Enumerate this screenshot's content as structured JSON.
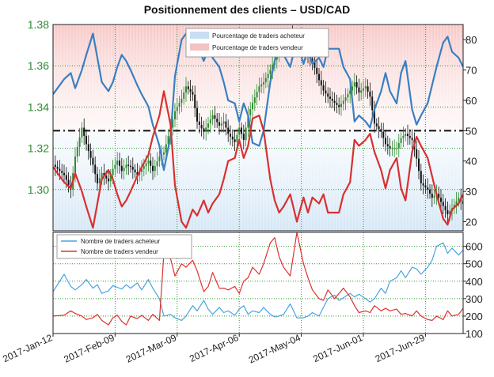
{
  "chart_data": [
    {
      "type": "line",
      "title": "Positionnement des clients – USD/CAD",
      "price_axis": {
        "ylim": [
          1.28,
          1.38
        ],
        "ticks": [
          "1.30",
          "1.32",
          "1.34",
          "1.36",
          "1.38"
        ],
        "color": "#2e8b2e"
      },
      "percent_axis": {
        "ylim": [
          17,
          85
        ],
        "ticks": [
          "20",
          "30",
          "40",
          "50",
          "60",
          "70",
          "80"
        ]
      },
      "reference_line": 50,
      "legend": {
        "placement": "top-center",
        "entries": [
          "Pourcentage de traders acheteur",
          "Pourcentage de traders vendeur"
        ]
      },
      "x_categories": [
        "2017-Jan-12",
        "2017-Feb-09",
        "2017-Mar-09",
        "2017-Apr-06",
        "2017-May-04",
        "2017-Jun-01",
        "2017-Jun-29"
      ],
      "x_range_days": [
        0,
        185
      ],
      "series": [
        {
          "name": "Pourcentage de traders acheteur",
          "color": "#3a7fc1",
          "x": [
            0,
            5,
            8,
            10,
            13,
            15,
            18,
            20,
            22,
            25,
            27,
            29,
            31,
            33,
            35,
            38,
            40,
            43,
            45,
            48,
            50,
            53,
            55,
            58,
            60,
            63,
            65,
            68,
            70,
            72,
            75,
            77,
            79,
            82,
            84,
            86,
            88,
            90,
            93,
            95,
            98,
            100,
            102,
            104,
            107,
            110,
            113,
            115,
            117,
            120,
            122,
            124,
            127,
            129,
            131,
            134,
            136,
            138,
            141,
            143,
            145,
            148,
            150,
            152,
            155,
            157,
            159,
            162,
            164,
            166,
            169,
            171,
            173,
            176,
            178,
            180,
            183,
            185
          ],
          "values": [
            62,
            67,
            69,
            64,
            70,
            75,
            82,
            74,
            66,
            63,
            66,
            71,
            75,
            73,
            70,
            65,
            62,
            58,
            52,
            45,
            37,
            48,
            68,
            80,
            82,
            76,
            78,
            73,
            77,
            74,
            71,
            66,
            60,
            59,
            53,
            59,
            55,
            46,
            45,
            50,
            66,
            73,
            77,
            75,
            71,
            80,
            72,
            77,
            72,
            74,
            71,
            77,
            77,
            77,
            71,
            67,
            53,
            55,
            53,
            51,
            57,
            63,
            69,
            63,
            59,
            69,
            73,
            57,
            52,
            55,
            59,
            65,
            71,
            79,
            81,
            76,
            74,
            71
          ]
        },
        {
          "name": "Pourcentage de traders vendeur",
          "color": "#d93030",
          "x": [
            0,
            5,
            8,
            10,
            13,
            15,
            18,
            20,
            22,
            25,
            27,
            29,
            31,
            33,
            35,
            38,
            40,
            43,
            45,
            48,
            50,
            53,
            55,
            58,
            60,
            63,
            65,
            68,
            70,
            72,
            75,
            77,
            79,
            82,
            84,
            86,
            88,
            90,
            93,
            95,
            98,
            100,
            102,
            104,
            107,
            110,
            113,
            115,
            117,
            120,
            122,
            124,
            127,
            129,
            131,
            134,
            136,
            138,
            141,
            143,
            145,
            148,
            150,
            152,
            155,
            157,
            159,
            162,
            164,
            166,
            169,
            171,
            173,
            176,
            178,
            180,
            183,
            185
          ],
          "values": [
            38,
            33,
            31,
            36,
            30,
            25,
            18,
            26,
            34,
            37,
            34,
            29,
            25,
            27,
            30,
            35,
            38,
            42,
            48,
            55,
            63,
            52,
            32,
            20,
            18,
            24,
            22,
            27,
            23,
            26,
            29,
            34,
            40,
            41,
            47,
            41,
            45,
            54,
            55,
            50,
            34,
            27,
            23,
            25,
            29,
            20,
            28,
            23,
            28,
            26,
            29,
            23,
            23,
            23,
            29,
            33,
            47,
            45,
            47,
            49,
            43,
            37,
            31,
            37,
            41,
            31,
            27,
            43,
            48,
            45,
            41,
            35,
            29,
            21,
            19,
            24,
            26,
            29
          ]
        },
        {
          "name": "USD/CAD",
          "color": "#111111",
          "x": [
            0,
            5,
            8,
            10,
            13,
            15,
            18,
            20,
            22,
            25,
            27,
            29,
            31,
            33,
            35,
            38,
            40,
            43,
            45,
            48,
            50,
            53,
            55,
            58,
            60,
            63,
            65,
            68,
            70,
            72,
            75,
            77,
            79,
            82,
            84,
            86,
            88,
            90,
            93,
            95,
            98,
            100,
            102,
            104,
            107,
            110,
            113,
            115,
            117,
            120,
            122,
            124,
            127,
            129,
            131,
            134,
            136,
            138,
            141,
            143,
            145,
            148,
            150,
            152,
            155,
            157,
            159,
            162,
            164,
            166,
            169,
            171,
            173,
            176,
            178,
            180,
            183,
            185
          ],
          "values": [
            1.312,
            1.307,
            1.3,
            1.316,
            1.33,
            1.322,
            1.312,
            1.303,
            1.308,
            1.304,
            1.31,
            1.314,
            1.309,
            1.312,
            1.311,
            1.307,
            1.31,
            1.314,
            1.309,
            1.316,
            1.318,
            1.33,
            1.338,
            1.344,
            1.35,
            1.346,
            1.333,
            1.328,
            1.332,
            1.336,
            1.331,
            1.333,
            1.327,
            1.323,
            1.33,
            1.324,
            1.336,
            1.342,
            1.35,
            1.352,
            1.358,
            1.363,
            1.368,
            1.372,
            1.375,
            1.373,
            1.369,
            1.365,
            1.362,
            1.353,
            1.348,
            1.345,
            1.342,
            1.34,
            1.343,
            1.348,
            1.352,
            1.347,
            1.35,
            1.345,
            1.332,
            1.328,
            1.322,
            1.32,
            1.32,
            1.325,
            1.327,
            1.324,
            1.315,
            1.303,
            1.3,
            1.296,
            1.298,
            1.292,
            1.288,
            1.291,
            1.296,
            1.293
          ]
        }
      ]
    },
    {
      "type": "line",
      "ylim": [
        100,
        680
      ],
      "ticks": [
        "100",
        "200",
        "300",
        "400",
        "500",
        "600"
      ],
      "legend": {
        "placement": "top-left",
        "entries": [
          "Nombre de traders acheteur",
          "Nombre de traders vendeur"
        ]
      },
      "series": [
        {
          "name": "Nombre de traders acheteur",
          "color": "#4aa3e0",
          "x": [
            0,
            5,
            8,
            10,
            13,
            15,
            18,
            20,
            22,
            25,
            27,
            29,
            31,
            33,
            35,
            38,
            40,
            43,
            45,
            48,
            50,
            53,
            55,
            58,
            60,
            63,
            65,
            68,
            70,
            72,
            75,
            77,
            79,
            82,
            84,
            86,
            88,
            90,
            93,
            95,
            98,
            100,
            102,
            104,
            107,
            110,
            113,
            115,
            117,
            120,
            122,
            124,
            127,
            129,
            131,
            134,
            136,
            138,
            141,
            143,
            145,
            148,
            150,
            152,
            155,
            157,
            159,
            162,
            164,
            166,
            169,
            171,
            173,
            176,
            178,
            180,
            183,
            185
          ],
          "values": [
            340,
            440,
            370,
            350,
            380,
            410,
            360,
            380,
            330,
            345,
            375,
            365,
            355,
            380,
            360,
            390,
            350,
            410,
            360,
            300,
            200,
            210,
            190,
            175,
            200,
            260,
            230,
            290,
            240,
            210,
            250,
            220,
            230,
            205,
            240,
            260,
            210,
            230,
            220,
            250,
            210,
            195,
            200,
            210,
            270,
            190,
            190,
            200,
            220,
            200,
            250,
            300,
            320,
            290,
            305,
            330,
            310,
            325,
            300,
            280,
            300,
            360,
            330,
            400,
            420,
            460,
            420,
            480,
            470,
            440,
            480,
            520,
            600,
            620,
            560,
            590,
            550,
            580
          ]
        },
        {
          "name": "Nombre de traders vendeur",
          "color": "#e03030",
          "x": [
            0,
            5,
            8,
            10,
            13,
            15,
            18,
            20,
            22,
            25,
            27,
            29,
            31,
            33,
            35,
            38,
            40,
            43,
            45,
            48,
            50,
            53,
            55,
            58,
            60,
            63,
            65,
            68,
            70,
            72,
            75,
            77,
            79,
            82,
            84,
            86,
            88,
            90,
            93,
            95,
            98,
            100,
            102,
            104,
            107,
            110,
            113,
            115,
            117,
            120,
            122,
            124,
            127,
            129,
            131,
            134,
            136,
            138,
            141,
            143,
            145,
            148,
            150,
            152,
            155,
            157,
            159,
            162,
            164,
            166,
            169,
            171,
            173,
            176,
            178,
            180,
            183,
            185
          ],
          "values": [
            200,
            205,
            230,
            215,
            200,
            180,
            190,
            210,
            175,
            150,
            190,
            205,
            170,
            150,
            200,
            185,
            205,
            175,
            210,
            175,
            560,
            530,
            430,
            500,
            480,
            520,
            460,
            340,
            370,
            450,
            360,
            360,
            350,
            370,
            330,
            400,
            420,
            480,
            440,
            500,
            620,
            650,
            540,
            480,
            430,
            680,
            500,
            420,
            350,
            300,
            290,
            350,
            300,
            330,
            360,
            310,
            260,
            220,
            230,
            220,
            260,
            230,
            245,
            230,
            240,
            210,
            215,
            200,
            230,
            200,
            180,
            175,
            200,
            180,
            230,
            200,
            210,
            245
          ]
        }
      ]
    }
  ]
}
